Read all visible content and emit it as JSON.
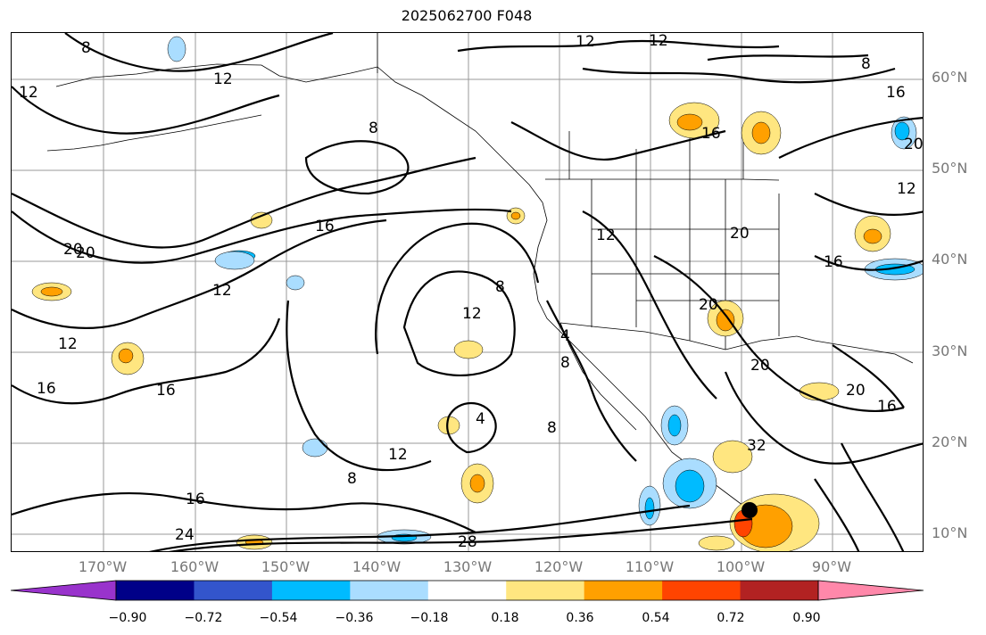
{
  "title": "2025062700 F048",
  "lat_labels": [
    "60°N",
    "50°N",
    "40°N",
    "30°N",
    "20°N",
    "10°N"
  ],
  "lon_labels": [
    "170°W",
    "160°W",
    "150°W",
    "140°W",
    "130°W",
    "120°W",
    "110°W",
    "100°W",
    "90°W"
  ],
  "contour_labels": [
    "8",
    "12",
    "12",
    "12",
    "8",
    "16",
    "12",
    "20",
    "16",
    "16",
    "12",
    "8",
    "12",
    "16",
    "16",
    "12",
    "8",
    "4",
    "8",
    "12",
    "16",
    "20",
    "20",
    "20",
    "20",
    "20",
    "16",
    "12",
    "4",
    "8",
    "32",
    "8",
    "24",
    "28",
    "20",
    "16",
    "12"
  ],
  "colorbar": {
    "tick_labels": [
      "−0.90",
      "−0.72",
      "−0.54",
      "−0.36",
      "−0.18",
      "0.18",
      "0.36",
      "0.54",
      "0.72",
      "0.90"
    ],
    "colors": [
      "#9933cc",
      "#000088",
      "#3355cc",
      "#00bbff",
      "#aaddff",
      "#ffffff",
      "#ffe680",
      "#ffa000",
      "#ff4400",
      "#b22222",
      "#ff88aa"
    ]
  },
  "fill_colors": {
    "lightyellow": "#ffe680",
    "orange": "#ffa000",
    "red": "#ff4400",
    "lightblue": "#aaddff",
    "blue": "#00bbff"
  },
  "marker": {
    "name": "black-dot",
    "color": "#000000"
  }
}
